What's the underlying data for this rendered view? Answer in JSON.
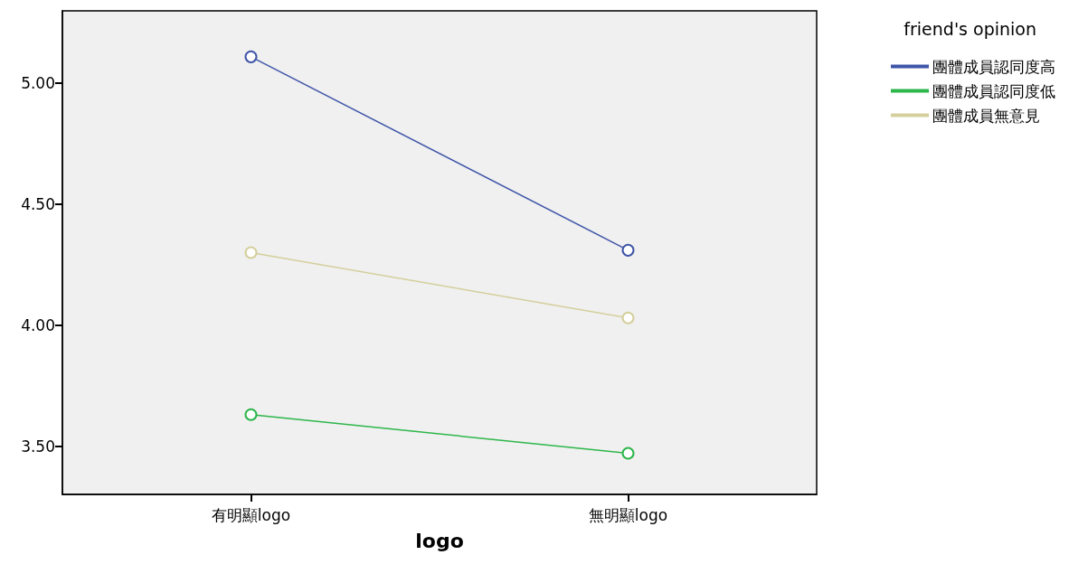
{
  "chart_data": {
    "type": "line",
    "xlabel": "logo",
    "legend_title": "friend's opinion",
    "legend": "top right",
    "marker": "circle",
    "grid": false,
    "categories": [
      "有明顯logo",
      "無明顯logo"
    ],
    "ylim": [
      3.3,
      5.3
    ],
    "yticks": [
      {
        "value": 3.5,
        "label": "3.50"
      },
      {
        "value": 4.0,
        "label": "4.00"
      },
      {
        "value": 4.5,
        "label": "4.50"
      },
      {
        "value": 5.0,
        "label": "5.00"
      }
    ],
    "series": [
      {
        "name": "團體成員認同度高",
        "color": "#3f55a8",
        "values": [
          5.11,
          4.31
        ]
      },
      {
        "name": "團體成員認同度低",
        "color": "#2db64a",
        "values": [
          3.63,
          3.47
        ]
      },
      {
        "name": "團體成員無意見",
        "color": "#d4cf9c",
        "values": [
          4.3,
          4.03
        ]
      }
    ]
  }
}
